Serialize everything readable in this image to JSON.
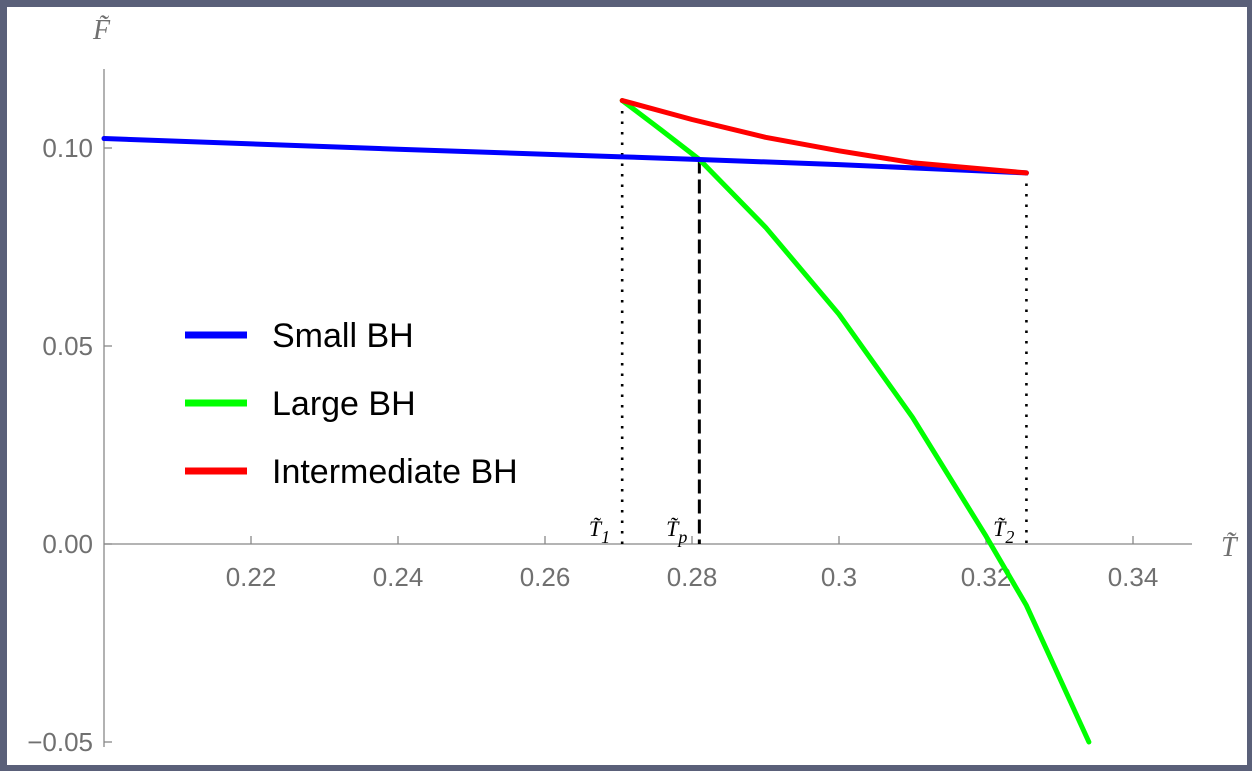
{
  "chart_data": {
    "type": "line",
    "xlabel": "T̃",
    "ylabel": "F̃",
    "xlim": [
      0.2,
      0.35
    ],
    "ylim": [
      -0.05,
      0.12
    ],
    "x_ticks": [
      0.22,
      0.24,
      0.26,
      0.28,
      0.3,
      0.32,
      0.34
    ],
    "x_tick_labels": [
      "0.22",
      "0.24",
      "0.26",
      "0.28",
      "0.3",
      "0.32",
      "0.34"
    ],
    "y_ticks": [
      -0.05,
      0.0,
      0.05,
      0.1
    ],
    "y_tick_labels": [
      "−0.05",
      "0.00",
      "0.05",
      "0.10"
    ],
    "legend_position": "left",
    "series": [
      {
        "name": "Small BH",
        "color": "#0000ff",
        "x": [
          0.2,
          0.24,
          0.27,
          0.281,
          0.3,
          0.3255
        ],
        "y": [
          0.1024,
          0.0997,
          0.0978,
          0.0971,
          0.0958,
          0.0937
        ]
      },
      {
        "name": "Large BH",
        "color": "#00ff00",
        "x": [
          0.2705,
          0.2755,
          0.281,
          0.29,
          0.3,
          0.31,
          0.32,
          0.3255,
          0.334
        ],
        "y": [
          0.112,
          0.105,
          0.0971,
          0.08,
          0.058,
          0.032,
          0.002,
          -0.0155,
          -0.05
        ]
      },
      {
        "name": "Intermediate BH",
        "color": "#ff0000",
        "x": [
          0.2705,
          0.28,
          0.29,
          0.3,
          0.31,
          0.3255
        ],
        "y": [
          0.112,
          0.1072,
          0.1027,
          0.0993,
          0.0963,
          0.0937
        ]
      }
    ],
    "annotations": [
      {
        "label": "T̃",
        "sub": "1",
        "x": 0.2705,
        "style": "dotted",
        "y_top": 0.112
      },
      {
        "label": "T̃",
        "sub": "p",
        "x": 0.281,
        "style": "dashed",
        "y_top": 0.0971
      },
      {
        "label": "T̃",
        "sub": "2",
        "x": 0.3255,
        "style": "dotted",
        "y_top": 0.0937
      }
    ]
  }
}
